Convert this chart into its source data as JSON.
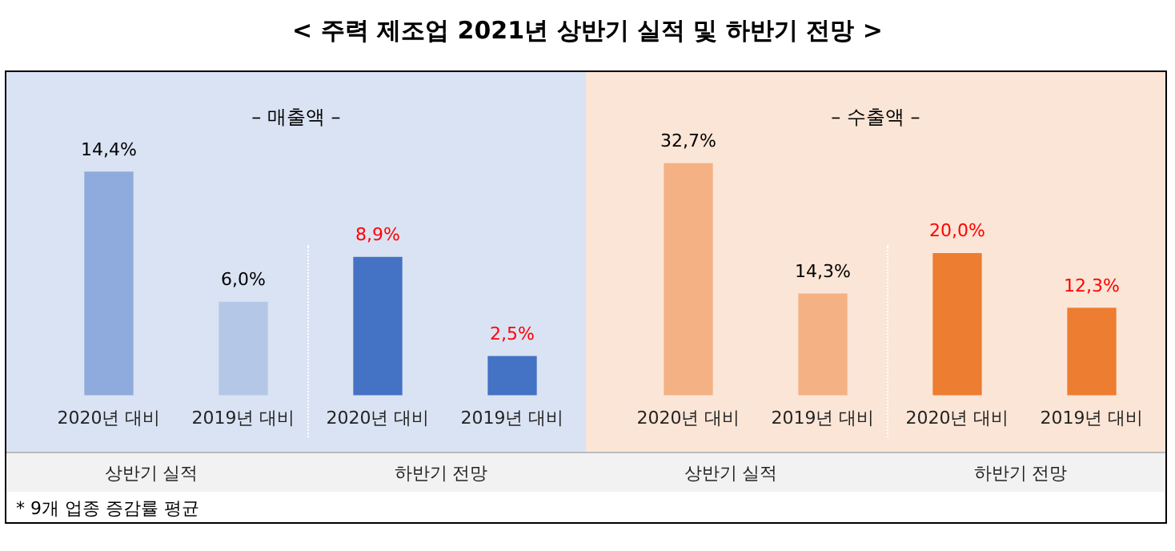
{
  "chart_data": [
    {
      "type": "bar",
      "title": "< 주력 제조업 2021년 상반기 실적 및 하반기 전망 >",
      "subtitle": "– 매출액 –",
      "categories": [
        "2020년 대비",
        "2019년 대비",
        "2020년 대비",
        "2019년 대비"
      ],
      "values": [
        14.4,
        6.0,
        8.9,
        2.5
      ],
      "colors": [
        "#8faadc",
        "#b4c7e7",
        "#4472c4",
        "#4472c4"
      ],
      "value_labels": [
        "14,4%",
        "6,0%",
        "8,9%",
        "2,5%"
      ],
      "tick_labels": "x",
      "grid": false,
      "legend": false,
      "annotations": [
        "상반기 실적",
        "하반기 전망"
      ]
    },
    {
      "type": "bar",
      "subtitle": "– 수출액 –",
      "categories": [
        "2020년 대비",
        "2019년 대비",
        "2020년 대비",
        "2019년 대비"
      ],
      "values": [
        32.7,
        14.3,
        20.0,
        12.3
      ],
      "colors": [
        "#f4b183",
        "#f4b183",
        "#ed7d31",
        "#ed7d31"
      ],
      "value_labels": [
        "32,7%",
        "14,3%",
        "20,0%",
        "12,3%"
      ],
      "tick_labels": "x",
      "grid": false,
      "legend": false,
      "annotations": [
        "상반기 실적",
        "하반기 전망",
        "* 9개 업종 증감률 평균"
      ]
    }
  ]
}
